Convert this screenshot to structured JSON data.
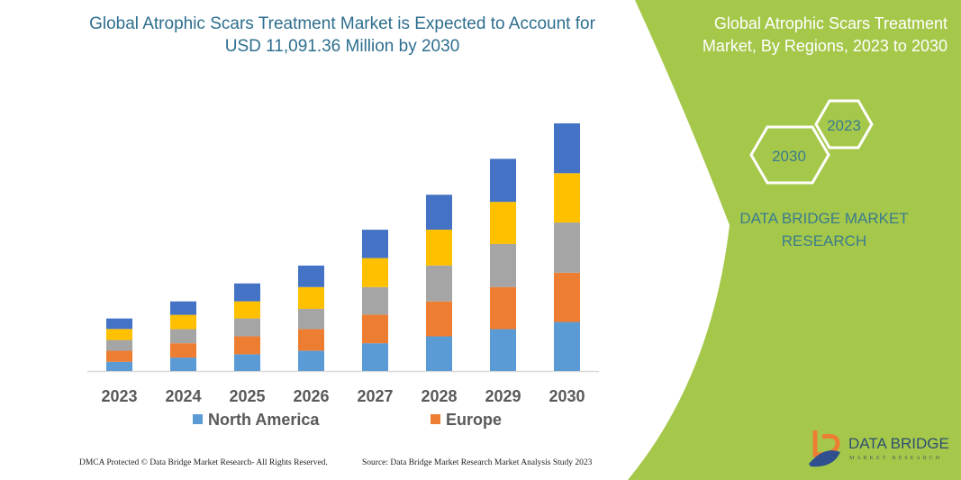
{
  "title": "Global Atrophic Scars Treatment Market is Expected to Account for USD 11,091.36 Million by 2030",
  "panel": {
    "title": "Global Atrophic Scars Treatment Market, By Regions, 2023 to 2030",
    "hex_2023": "2023",
    "hex_2030": "2030",
    "brand": "DATA BRIDGE MARKET RESEARCH",
    "logo_text": "DATA BRIDGE",
    "logo_subtext": "MARKET RESEARCH",
    "color": "#a5c84b"
  },
  "footer": {
    "left": "DMCA Protected © Data Bridge Market Research- All Rights Reserved.",
    "right": "Source: Data Bridge Market Research Market Analysis Study 2023"
  },
  "chart_data": {
    "type": "bar",
    "stacked": true,
    "unit": "USD Million",
    "categories": [
      "2023",
      "2024",
      "2025",
      "2026",
      "2027",
      "2028",
      "2029",
      "2030"
    ],
    "series": [
      {
        "name": "North America",
        "color": "#5b9bd5",
        "values": [
          413,
          602,
          751,
          911,
          1244,
          1553,
          1875,
          2196
        ]
      },
      {
        "name": "Europe",
        "color": "#ed7d31",
        "values": [
          494,
          642,
          803,
          963,
          1284,
          1565,
          1887,
          2208
        ]
      },
      {
        "color": "#a5a5a5",
        "values": [
          482,
          630,
          803,
          911,
          1232,
          1606,
          1927,
          2248
        ]
      },
      {
        "color": "#ffc000",
        "values": [
          494,
          642,
          763,
          975,
          1297,
          1606,
          1887,
          2208
        ]
      },
      {
        "color": "#4472c4",
        "values": [
          470,
          602,
          803,
          963,
          1272,
          1565,
          1927,
          2231
        ]
      }
    ],
    "legend": [
      "North America",
      "Europe"
    ],
    "legend_position": "bottom",
    "grid": false
  }
}
